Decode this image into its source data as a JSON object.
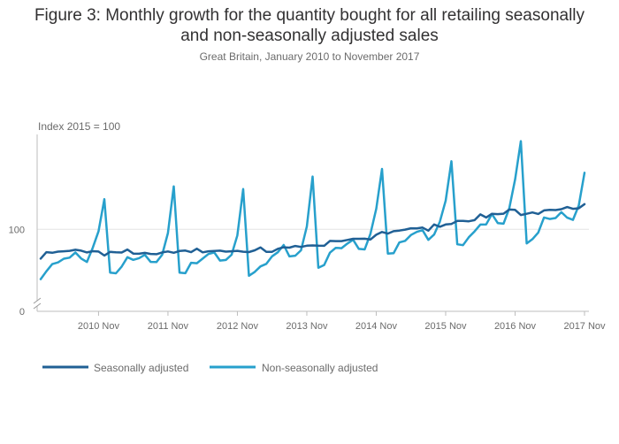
{
  "title_line1": "Figure 3: Monthly growth for the quantity bought for all retailing seasonally",
  "title_line2": "and non-seasonally adjusted sales",
  "subtitle": "Great Britain, January 2010 to November 2017",
  "chart_data": {
    "type": "line",
    "title": "Figure 3: Monthly growth for the quantity bought for all retailing seasonally and non-seasonally adjusted sales",
    "subtitle": "Great Britain, January 2010 to November 2017",
    "ylabel": "Index 2015 = 100",
    "xlabel": "",
    "y_ticks": [
      0,
      100
    ],
    "x_tick_labels": [
      "2010 Nov",
      "2011 Nov",
      "2012 Nov",
      "2013 Nov",
      "2014 Nov",
      "2015 Nov",
      "2016 Nov",
      "2017 Nov"
    ],
    "x_tick_index": [
      10,
      22,
      34,
      46,
      58,
      70,
      82,
      94
    ],
    "ylim": [
      0,
      222
    ],
    "y_axis_break": true,
    "gridlines": "horizontal at 100",
    "legend_position": "bottom-left",
    "colors": {
      "seasonally": "#206095",
      "non_seasonally": "#27a0cc",
      "axis": "#bdbdbd",
      "grid": "#e4e4e4"
    },
    "x": "monthly, 2010-01 to 2017-11 (95 points)",
    "series": [
      {
        "name": "Seasonally adjusted",
        "values": [
          63.0,
          71.2,
          70.4,
          71.9,
          72.3,
          72.9,
          74.2,
          73.1,
          70.8,
          72.4,
          72.0,
          67.0,
          71.5,
          71.0,
          70.7,
          74.5,
          69.4,
          69.2,
          70.3,
          69.0,
          68.6,
          70.9,
          72.1,
          70.4,
          72.6,
          73.2,
          71.2,
          75.5,
          71.0,
          72.3,
          72.8,
          73.1,
          71.9,
          72.3,
          72.9,
          71.7,
          71.3,
          73.5,
          77.1,
          71.6,
          71.6,
          75.4,
          77.3,
          76.9,
          79.0,
          77.8,
          79.3,
          79.7,
          79.3,
          79.2,
          85.4,
          85.2,
          85.2,
          86.6,
          88.0,
          88.0,
          88.2,
          87.2,
          93.2,
          96.6,
          94.6,
          97.6,
          98.4,
          99.6,
          101.3,
          101.2,
          102.2,
          98.3,
          106.1,
          103.2,
          106.1,
          106.8,
          110.6,
          110.7,
          110.2,
          111.6,
          118.9,
          115.0,
          119.6,
          119.2,
          119.8,
          125.0,
          124.5,
          118.1,
          119.6,
          121.3,
          119.4,
          123.9,
          124.7,
          124.3,
          125.4,
          128.1,
          125.9,
          126.6,
          131.8
        ]
      },
      {
        "name": "Non-seasonally adjusted",
        "values": [
          37.2,
          47.1,
          56.1,
          58.2,
          62.9,
          64.3,
          70.7,
          63.2,
          58.8,
          76.8,
          97.4,
          138.1,
          45.4,
          44.5,
          53.0,
          64.8,
          61.5,
          63.6,
          67.8,
          58.9,
          58.7,
          68.0,
          95.3,
          154.2,
          45.4,
          44.6,
          57.8,
          57.2,
          63.0,
          68.9,
          70.8,
          60.6,
          61.4,
          68.0,
          92.3,
          150.8,
          41.4,
          46.3,
          53.2,
          56.5,
          66.0,
          71.1,
          80.2,
          65.8,
          66.7,
          73.5,
          103.7,
          166.6,
          51.5,
          55.0,
          70.5,
          76.7,
          76.2,
          82.0,
          86.8,
          75.3,
          74.7,
          94.3,
          126.0,
          176.2,
          69.4,
          69.9,
          83.5,
          85.5,
          92.9,
          96.7,
          99.0,
          86.7,
          93.4,
          109.6,
          136.3,
          185.9,
          81.1,
          80.0,
          90.0,
          97.4,
          106.0,
          106.2,
          119.3,
          107.9,
          107.1,
          126.4,
          162.9,
          211.3,
          82.2,
          87.6,
          96.0,
          115.0,
          113.1,
          114.3,
          121.7,
          114.7,
          111.9,
          130.0,
          171.4
        ]
      }
    ]
  },
  "legend": {
    "items": [
      {
        "label": "Seasonally adjusted"
      },
      {
        "label": "Non-seasonally adjusted"
      }
    ]
  }
}
